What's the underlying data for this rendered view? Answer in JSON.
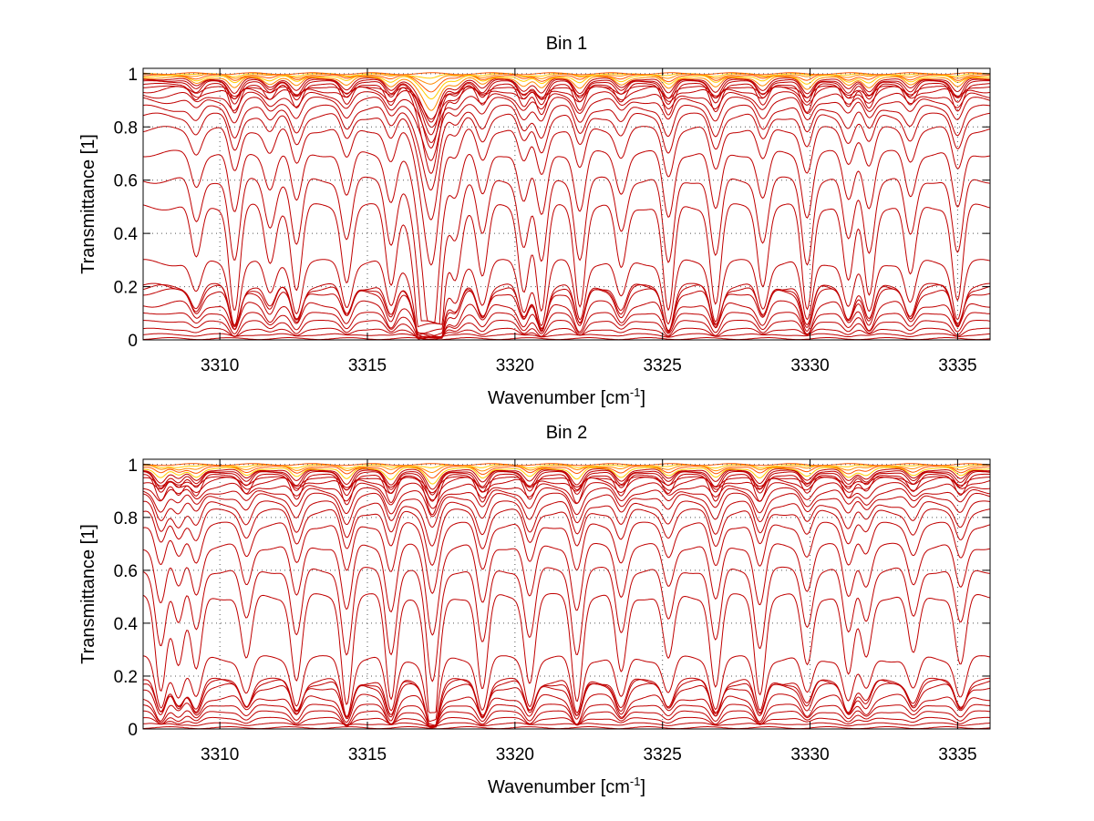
{
  "chart_data": [
    {
      "type": "line",
      "title": "Bin 1",
      "xlabel": "Wavenumber [cm",
      "xlabel_sup": "-1",
      "xlabel_end": "]",
      "ylabel": "Transmittance [1]",
      "xlim": [
        3307.4,
        3336.1
      ],
      "ylim": [
        0,
        1.02
      ],
      "xticks": [
        "3310",
        "3315",
        "3320",
        "3325",
        "3330",
        "3335"
      ],
      "yticks": [
        "0",
        "0.2",
        "0.4",
        "0.6",
        "0.8",
        "1"
      ],
      "grid": true,
      "series_count": 40,
      "line_color": "#c00000",
      "top_colors": [
        "#ff8800",
        "#ffcc00",
        "#ff5500"
      ],
      "series_baseline_transmittance": [
        0.005,
        0.02,
        0.04,
        0.07,
        0.1,
        0.135,
        0.18,
        0.195,
        0.2,
        0.29,
        0.5,
        0.6,
        0.7,
        0.79,
        0.84,
        0.87,
        0.9,
        0.92,
        0.94,
        0.95,
        0.96,
        0.97,
        0.975,
        0.98,
        0.985,
        0.99,
        0.993,
        0.996,
        0.998,
        1.0
      ],
      "absorption_lines_cm-1": [
        3309.2,
        3310.5,
        3311.7,
        3312.6,
        3314.3,
        3315.8,
        3317.2,
        3318.0,
        3318.9,
        3320.3,
        3320.9,
        3322.2,
        3323.6,
        3325.2,
        3326.8,
        3328.4,
        3329.9,
        3331.3,
        3332.0,
        3333.4,
        3335.0
      ],
      "dominant_line_cm-1": 3317.1
    },
    {
      "type": "line",
      "title": "Bin 2",
      "xlabel": "Wavenumber [cm",
      "xlabel_sup": "-1",
      "xlabel_end": "]",
      "ylabel": "Transmittance [1]",
      "xlim": [
        3307.4,
        3336.1
      ],
      "ylim": [
        0,
        1.02
      ],
      "xticks": [
        "3310",
        "3315",
        "3320",
        "3325",
        "3330",
        "3335"
      ],
      "yticks": [
        "0",
        "0.2",
        "0.4",
        "0.6",
        "0.8",
        "1"
      ],
      "grid": true,
      "series_count": 40,
      "line_color": "#c00000",
      "top_colors": [
        "#ff8800",
        "#ffcc00",
        "#ff5500"
      ],
      "series_baseline_transmittance": [
        0.005,
        0.02,
        0.04,
        0.065,
        0.09,
        0.12,
        0.16,
        0.175,
        0.18,
        0.265,
        0.5,
        0.6,
        0.69,
        0.77,
        0.82,
        0.85,
        0.88,
        0.9,
        0.92,
        0.94,
        0.95,
        0.96,
        0.97,
        0.975,
        0.98,
        0.985,
        0.99,
        0.994,
        0.997,
        1.0
      ],
      "absorption_lines_cm-1": [
        3308.0,
        3308.6,
        3309.2,
        3310.9,
        3312.6,
        3314.3,
        3315.8,
        3317.2,
        3318.9,
        3320.5,
        3322.1,
        3323.6,
        3325.2,
        3326.8,
        3328.3,
        3329.9,
        3331.3,
        3331.9,
        3333.5,
        3335.1
      ],
      "dominant_line_cm-1": 3317.2
    }
  ]
}
